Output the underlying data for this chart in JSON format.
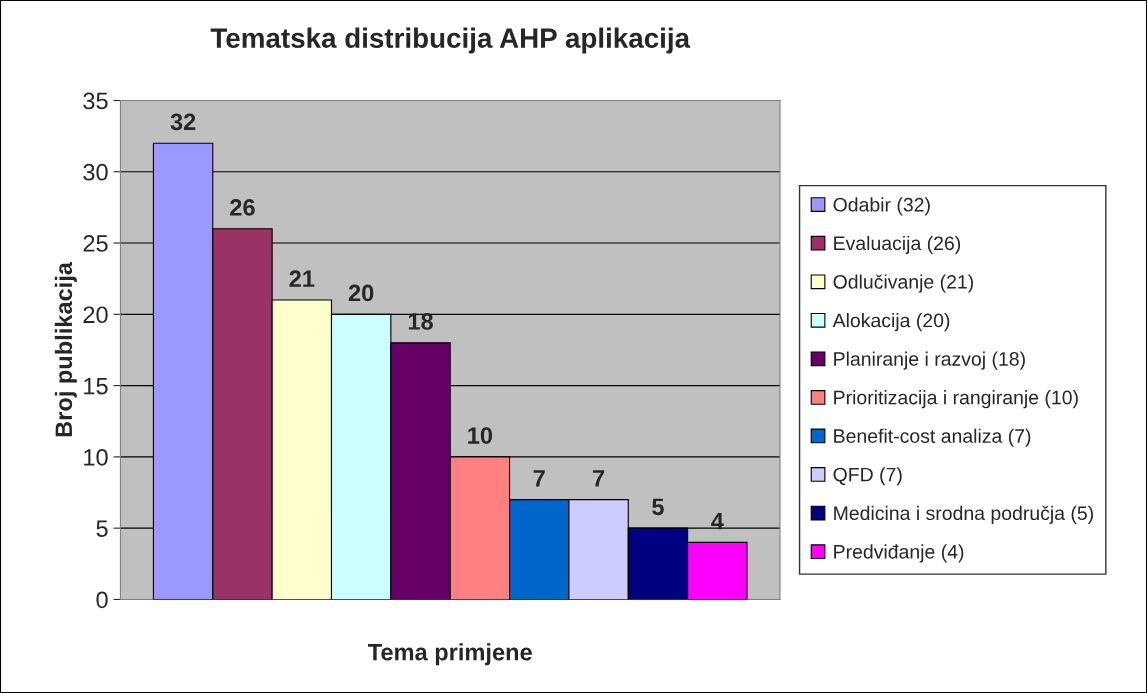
{
  "chart_data": {
    "type": "bar",
    "title": "Tematska distribucija AHP aplikacija",
    "xlabel": "Tema primjene",
    "ylabel": "Broj publikacija",
    "categories": [
      null
    ],
    "series": [
      {
        "name": "Odabir (32)",
        "color": "#9999ff",
        "values": [
          32
        ]
      },
      {
        "name": "Evaluacija (26)",
        "color": "#993366",
        "values": [
          26
        ]
      },
      {
        "name": "Odlučivanje (21)",
        "color": "#ffffcc",
        "values": [
          21
        ]
      },
      {
        "name": "Alokacija (20)",
        "color": "#ccffff",
        "values": [
          20
        ]
      },
      {
        "name": "Planiranje i razvoj (18)",
        "color": "#660066",
        "values": [
          18
        ]
      },
      {
        "name": "Prioritizacija i rangiranje (10)",
        "color": "#ff8080",
        "values": [
          10
        ]
      },
      {
        "name": "Benefit-cost analiza (7)",
        "color": "#0066cc",
        "values": [
          7
        ]
      },
      {
        "name": "QFD (7)",
        "color": "#ccccff",
        "values": [
          7
        ]
      },
      {
        "name": "Medicina i srodna područja (5)",
        "color": "#000080",
        "values": [
          5
        ]
      },
      {
        "name": "Predviđanje (4)",
        "color": "#ff00ff",
        "values": [
          4
        ]
      }
    ],
    "ylim": [
      0,
      35
    ],
    "yticks": [
      0,
      5,
      10,
      15,
      20,
      25,
      30,
      35
    ],
    "grid": "y",
    "legend": "right",
    "data_labels": true
  }
}
